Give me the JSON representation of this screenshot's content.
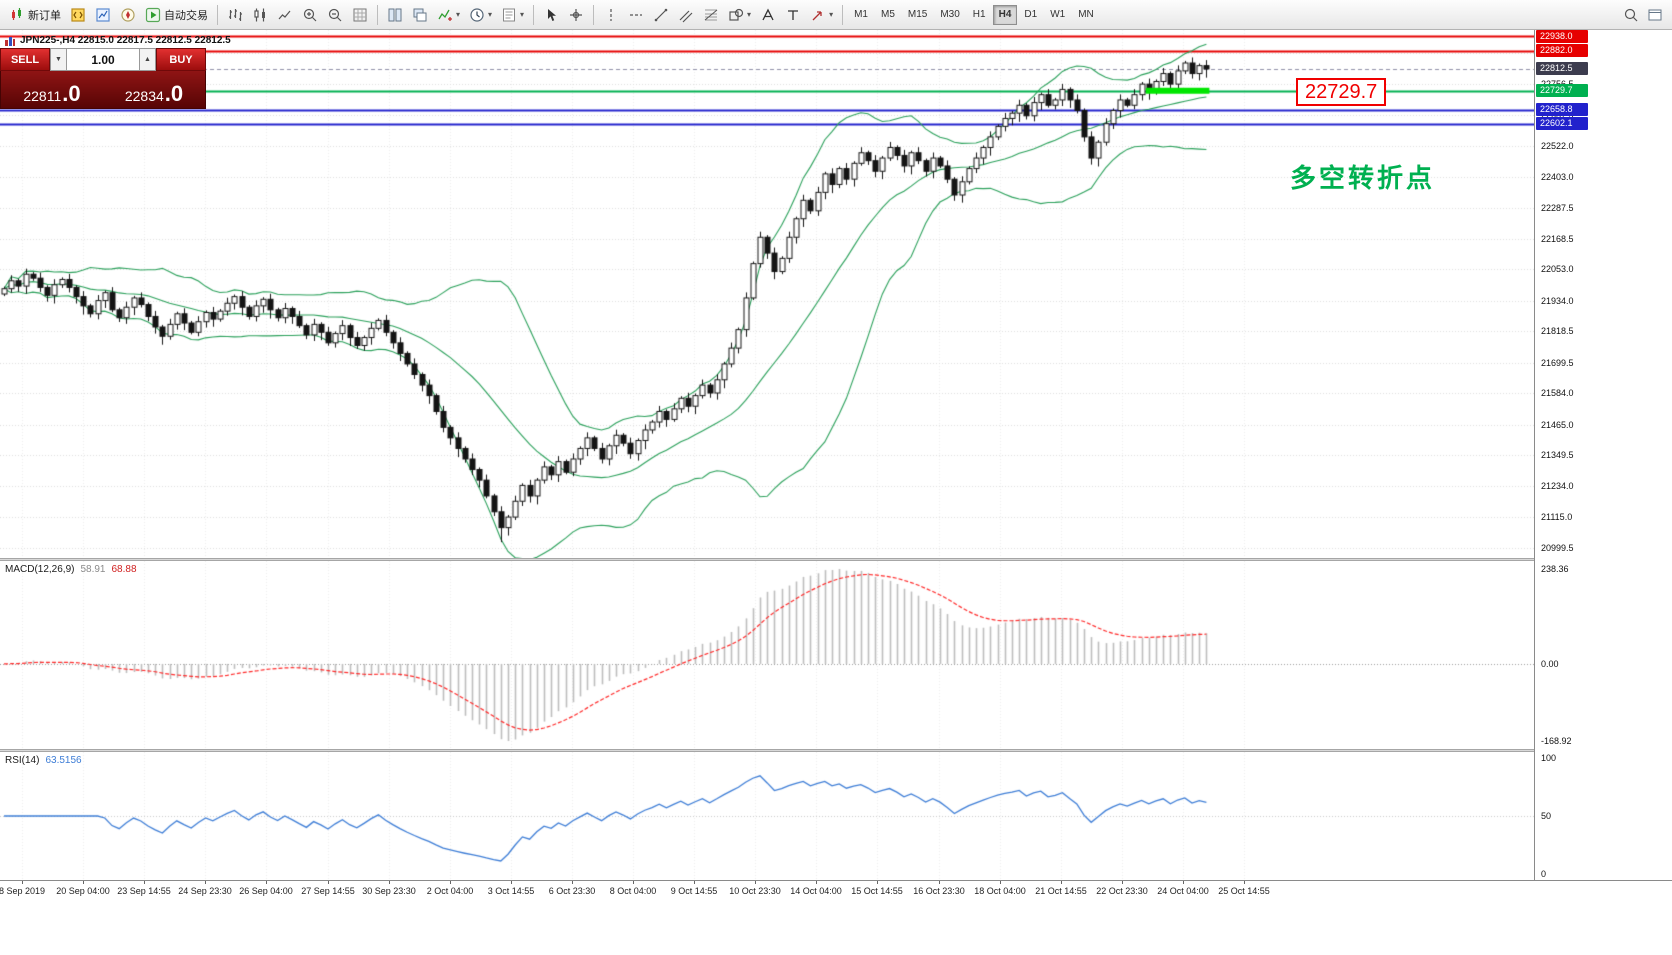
{
  "toolbar": {
    "groups": [
      {
        "name": "standard",
        "items": [
          {
            "name": "new-order",
            "icon": "new-order",
            "label": "新订单"
          },
          {
            "name": "metaeditor",
            "icon": "editor"
          },
          {
            "name": "market-watch",
            "icon": "market-watch"
          },
          {
            "name": "navigator",
            "icon": "navigator"
          },
          {
            "name": "autotrading",
            "icon": "play",
            "label": "自动交易"
          }
        ]
      },
      {
        "name": "charts",
        "items": [
          {
            "name": "bar-chart",
            "icon": "bars"
          },
          {
            "name": "candlestick-chart",
            "icon": "candles"
          },
          {
            "name": "line-chart",
            "icon": "linechart"
          },
          {
            "name": "zoom-in",
            "icon": "zoom-in"
          },
          {
            "name": "zoom-out",
            "icon": "zoom-out"
          },
          {
            "name": "grid",
            "icon": "grid"
          }
        ]
      },
      {
        "name": "windows",
        "items": [
          {
            "name": "tile-windows",
            "icon": "tile"
          },
          {
            "name": "cascade-windows",
            "icon": "cascade"
          },
          {
            "name": "indicators",
            "icon": "indicators",
            "dropdown": true
          },
          {
            "name": "periods",
            "icon": "clock",
            "dropdown": true
          },
          {
            "name": "templates",
            "icon": "template",
            "dropdown": true
          }
        ]
      },
      {
        "name": "cursor",
        "items": [
          {
            "name": "cursor",
            "icon": "cursor"
          },
          {
            "name": "crosshair",
            "icon": "crosshair"
          }
        ]
      },
      {
        "name": "objects",
        "items": [
          {
            "name": "vertical-line",
            "icon": "vline"
          },
          {
            "name": "horizontal-line",
            "icon": "hline"
          },
          {
            "name": "trendline",
            "icon": "trendline"
          },
          {
            "name": "equidistant-channel",
            "icon": "channel"
          },
          {
            "name": "fibonacci",
            "icon": "fibo"
          },
          {
            "name": "shapes",
            "icon": "shapes",
            "dropdown": true
          },
          {
            "name": "text",
            "icon": "text"
          },
          {
            "name": "text-label",
            "icon": "label"
          },
          {
            "name": "arrows",
            "icon": "arrow",
            "dropdown": true
          }
        ]
      }
    ],
    "timeframes": [
      {
        "label": "M1"
      },
      {
        "label": "M5"
      },
      {
        "label": "M15"
      },
      {
        "label": "M30"
      },
      {
        "label": "H1"
      },
      {
        "label": "H4",
        "active": true
      },
      {
        "label": "D1"
      },
      {
        "label": "W1"
      },
      {
        "label": "MN"
      }
    ],
    "right_items": [
      {
        "name": "search",
        "icon": "search"
      },
      {
        "name": "new-window",
        "icon": "window"
      }
    ]
  },
  "chart": {
    "info_line": "JPN225-,H4  22815.0 22817.5 22812.5 22812.5",
    "callout_text": "22729.7",
    "annotation_text": "多空转折点"
  },
  "order_panel": {
    "sell_label": "SELL",
    "buy_label": "BUY",
    "volume": "1.00",
    "spin_down": "▼",
    "spin_up": "▲",
    "sell_price_main": "22811",
    "sell_price_big": ".0",
    "buy_price_main": "22834",
    "buy_price_big": ".0"
  },
  "chart_data": {
    "type": "candlestick",
    "symbol": "JPN225-",
    "period": "H4",
    "ylim": [
      20960,
      22960
    ],
    "first_open": 21960,
    "closes": [
      21980,
      22010,
      21990,
      22035,
      22020,
      21985,
      21955,
      21995,
      22015,
      21985,
      21950,
      21915,
      21885,
      21935,
      21965,
      21900,
      21870,
      21910,
      21945,
      21920,
      21875,
      21835,
      21800,
      21845,
      21885,
      21850,
      21815,
      21855,
      21890,
      21865,
      21895,
      21925,
      21950,
      21910,
      21875,
      21915,
      21940,
      21900,
      21870,
      21905,
      21875,
      21840,
      21805,
      21845,
      21815,
      21775,
      21810,
      21840,
      21795,
      21765,
      21795,
      21830,
      21860,
      21815,
      21775,
      21735,
      21695,
      21655,
      21615,
      21575,
      21515,
      21455,
      21415,
      21375,
      21335,
      21295,
      21255,
      21195,
      21135,
      21075,
      21115,
      21175,
      21235,
      21195,
      21255,
      21305,
      21275,
      21325,
      21285,
      21335,
      21375,
      21415,
      21375,
      21335,
      21385,
      21425,
      21395,
      21355,
      21405,
      21445,
      21475,
      21515,
      21485,
      21525,
      21565,
      21535,
      21575,
      21615,
      21585,
      21635,
      21695,
      21755,
      21825,
      21945,
      22075,
      22175,
      22115,
      22045,
      22095,
      22175,
      22245,
      22315,
      22275,
      22345,
      22415,
      22375,
      22435,
      22395,
      22455,
      22495,
      22465,
      22425,
      22475,
      22515,
      22485,
      22445,
      22495,
      22465,
      22425,
      22475,
      22445,
      22395,
      22335,
      22385,
      22435,
      22475,
      22515,
      22555,
      22595,
      22625,
      22645,
      22675,
      22635,
      22685,
      22715,
      22675,
      22695,
      22735,
      22695,
      22655,
      22555,
      22475,
      22535,
      22605,
      22655,
      22695,
      22675,
      22715,
      22755,
      22725,
      22765,
      22795,
      22755,
      22805,
      22835,
      22795,
      22825,
      22812.5
    ],
    "spike_low": {
      "index": 69,
      "price": 21020
    },
    "y_ticks": [
      22756.5,
      22637.5,
      22522.0,
      22403.0,
      22287.5,
      22168.5,
      22053.0,
      21934.0,
      21818.5,
      21699.5,
      21584.0,
      21465.0,
      21349.5,
      21234.0,
      21115.0,
      20999.5
    ],
    "grid_extra": [
      22872.0
    ],
    "hlines": [
      {
        "price": 22938.0,
        "label": "22938.0",
        "color": "#e60000",
        "width": 2
      },
      {
        "price": 22882.0,
        "label": "22882.0",
        "color": "#e60000",
        "width": 2
      },
      {
        "price": 22729.7,
        "label": "22729.7",
        "color": "#00b050",
        "width": 2
      },
      {
        "price": 22658.8,
        "label": "22658.8",
        "color": "#2222cc",
        "width": 2
      },
      {
        "price": 22602.1,
        "label": "22602.1",
        "color": "#2222cc",
        "width": 2
      }
    ],
    "bid": {
      "price": 22812.5,
      "label": "22812.5",
      "bg": "#3c3c4e"
    },
    "highlight": {
      "price": 22729.7,
      "from_index": 159,
      "to_index": 167,
      "color": "#00e600",
      "width": 6
    },
    "bollinger": {
      "period": 20,
      "deviation": 2,
      "color": "#2aa05a"
    },
    "candle_colors": {
      "bull": "#ffffff",
      "bear": "#141414",
      "outline": "#141414"
    },
    "x_labels": [
      "8 Sep 2019",
      "20 Sep 04:00",
      "23 Sep 14:55",
      "24 Sep 23:30",
      "26 Sep 04:00",
      "27 Sep 14:55",
      "30 Sep 23:30",
      "2 Oct 04:00",
      "3 Oct 14:55",
      "6 Oct 23:30",
      "8 Oct 04:00",
      "9 Oct 14:55",
      "10 Oct 23:30",
      "14 Oct 04:00",
      "15 Oct 14:55",
      "16 Oct 23:30",
      "18 Oct 04:00",
      "21 Oct 14:55",
      "22 Oct 23:30",
      "24 Oct 04:00",
      "25 Oct 14:55"
    ],
    "indicators": [
      {
        "title": "MACD(12,26,9)",
        "value_main": "58.91",
        "value_signal": "68.88",
        "axis_labels": [
          "238.36",
          "0.00",
          "-168.92"
        ],
        "histogram_color": "#bdbdbd",
        "signal_color": "#ff2a2a"
      },
      {
        "title": "RSI(14)",
        "value": "63.5156",
        "axis_labels": [
          "100",
          "50",
          "0"
        ],
        "line_color": "#3d7dd6"
      }
    ]
  }
}
